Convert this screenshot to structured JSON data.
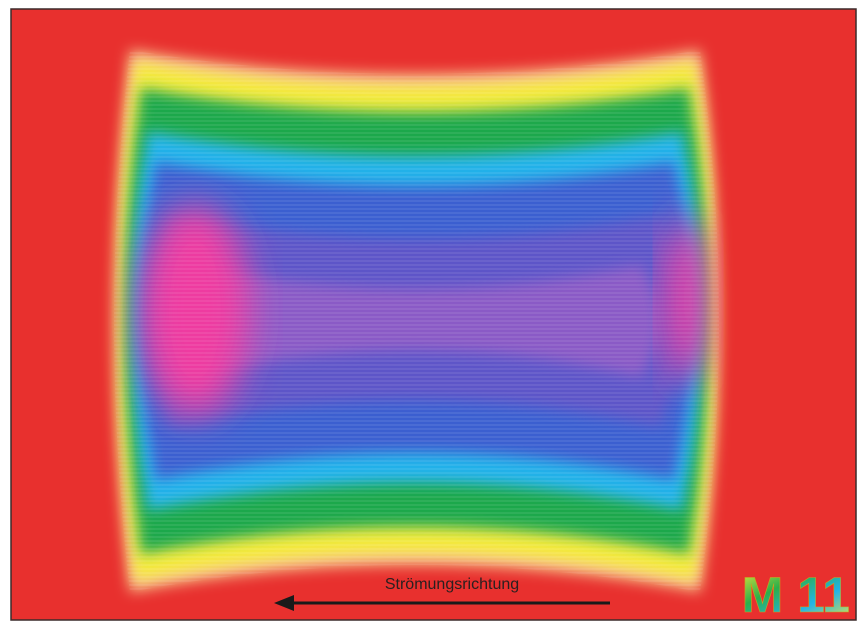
{
  "caption": "Strömungsrichtung",
  "logo": "M 11"
}
